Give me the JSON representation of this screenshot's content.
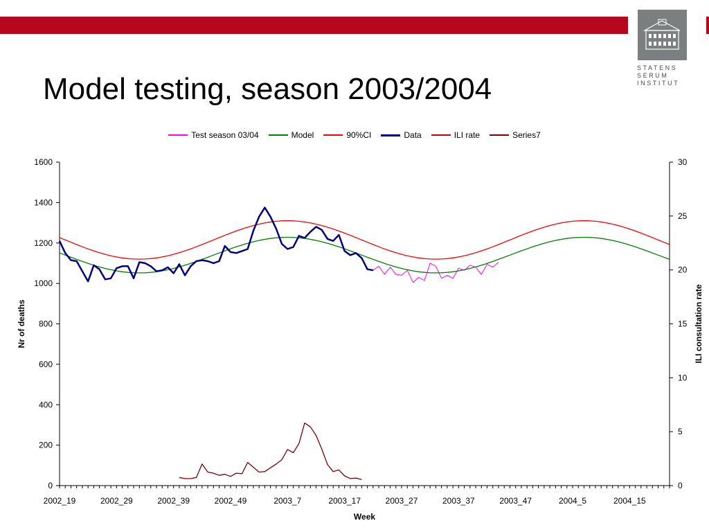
{
  "slide": {
    "title": "Model testing, season 2003/2004",
    "bar_color": "#b5081f",
    "logo": {
      "lines": [
        "STATENS",
        "SERUM",
        "INSTITUT"
      ],
      "emblem": "building-icon"
    }
  },
  "chart_data": {
    "type": "line",
    "xlabel": "Week",
    "ylabel_left": "Nr of deaths",
    "ylabel_right": "ILI consultation rate",
    "ylim_left": [
      0,
      1600
    ],
    "ylim_right": [
      0,
      30
    ],
    "y_ticks_left": [
      0,
      200,
      400,
      600,
      800,
      1000,
      1200,
      1400,
      1600
    ],
    "y_ticks_right": [
      0,
      5,
      10,
      15,
      20,
      25,
      30
    ],
    "x_tick_labels": [
      "2002_19",
      "2002_29",
      "2002_39",
      "2002_49",
      "2003_7",
      "2003_17",
      "2003_27",
      "2003_37",
      "2003_47",
      "2004_5",
      "2004_15"
    ],
    "x_tick_spacing_weeks": 10,
    "total_weeks": 107,
    "grid": false,
    "legend_placement": "top",
    "series": [
      {
        "name": "Test season 03/04",
        "color": "#ff00ff",
        "width": 1,
        "axis": "left",
        "start": 55,
        "values": [
          1065,
          1085,
          1045,
          1080,
          1045,
          1040,
          1065,
          1005,
          1030,
          1015,
          1100,
          1085,
          1025,
          1040,
          1025,
          1075,
          1065,
          1090,
          1080,
          1045,
          1095,
          1080,
          1105
        ]
      },
      {
        "name": "Model",
        "color": "#008000",
        "width": 1.3,
        "axis": "left",
        "curve": "model",
        "model_curve": {
          "mean": 1140,
          "amplitude": 88,
          "period_weeks": 52,
          "peak_week": 40
        }
      },
      {
        "name": "90%CI",
        "color": "#ff0000",
        "width": 1.3,
        "axis": "left",
        "curve": "ci",
        "model_curve": {
          "mean": 1215,
          "amplitude": 95,
          "period_weeks": 52,
          "peak_week": 40
        }
      },
      {
        "name": "Data",
        "color": "#000080",
        "width": 2.5,
        "axis": "left",
        "start": 0,
        "values": [
          1210,
          1150,
          1115,
          1110,
          1060,
          1010,
          1090,
          1070,
          1020,
          1025,
          1075,
          1085,
          1085,
          1025,
          1105,
          1100,
          1085,
          1060,
          1065,
          1080,
          1050,
          1095,
          1040,
          1085,
          1110,
          1115,
          1110,
          1100,
          1110,
          1185,
          1155,
          1150,
          1160,
          1170,
          1260,
          1330,
          1375,
          1330,
          1270,
          1195,
          1170,
          1180,
          1235,
          1225,
          1255,
          1280,
          1265,
          1220,
          1210,
          1240,
          1160,
          1140,
          1150,
          1125,
          1070,
          1065
        ]
      },
      {
        "name": "ILI rate",
        "color": "#cc0000",
        "width": 1.3,
        "axis": "right",
        "curve": "ci_tail",
        "hidden_line": true
      },
      {
        "name": "Series7",
        "color": "#800000",
        "width": 1.3,
        "axis": "right",
        "start": 21,
        "values": [
          0.75,
          0.65,
          0.65,
          0.75,
          2.0,
          1.25,
          1.15,
          0.95,
          1.05,
          0.85,
          1.15,
          1.1,
          2.15,
          1.7,
          1.25,
          1.3,
          1.65,
          2.0,
          2.4,
          3.35,
          3.05,
          3.9,
          5.8,
          5.45,
          4.65,
          3.4,
          1.95,
          1.3,
          1.45,
          0.9,
          0.65,
          0.7,
          0.55
        ]
      }
    ]
  }
}
